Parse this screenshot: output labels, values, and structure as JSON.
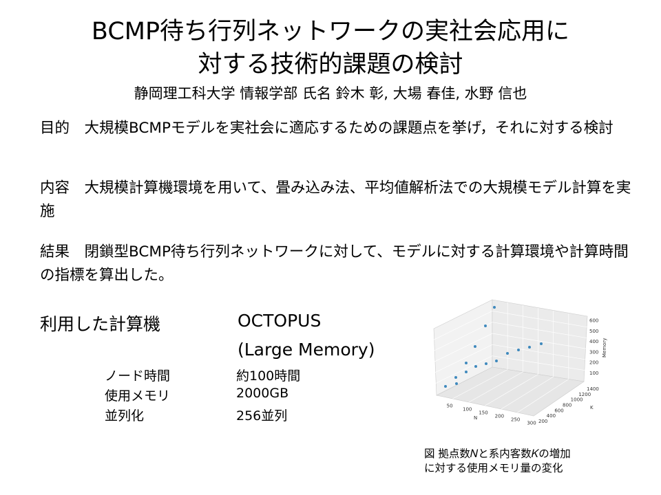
{
  "title": {
    "line1": "BCMP待ち行列ネットワークの実社会応用に",
    "line2": "対する技術的課題の検討"
  },
  "authors": "静岡理工科大学 情報学部 氏名 鈴木 彰, 大場 春佳, 水野 信也",
  "sections": [
    {
      "label": "目的",
      "text": "大規模BCMPモデルを実社会に適応するための課題点を挙げ，それに対する検討"
    },
    {
      "label": "内容",
      "text": "大規模計算機環境を用いて、畳み込み法、平均値解析法での大規模モデル計算を実施"
    },
    {
      "label": "結果",
      "text": "閉鎖型BCMP待ち行列ネットワークに対して、モデルに対する計算環境や計算時間の指標を算出した。"
    }
  ],
  "computer": {
    "label": "利用した計算機",
    "name_line1": "OCTOPUS",
    "name_line2": "(Large Memory)",
    "specs": [
      {
        "key": "ノード時間",
        "value": "約100時間"
      },
      {
        "key": "使用メモリ",
        "value": "2000GB"
      },
      {
        "key": "並列化",
        "value": "256並列"
      }
    ]
  },
  "figure": {
    "caption_line1": "図 拠点数𝑁と系内客数𝐾の増加",
    "caption_line2": "に対する使用メモリ量の変化",
    "chart_data": {
      "type": "scatter3d",
      "xlabel": "N",
      "ylabel": "K",
      "zlabel": "Memory",
      "x_ticks": [
        "50",
        "100",
        "150",
        "200",
        "250",
        "300"
      ],
      "y_ticks": [
        "200",
        "400",
        "600",
        "800",
        "1000",
        "1200",
        "1400"
      ],
      "z_ticks": [
        "100",
        "200",
        "300",
        "400",
        "500",
        "600"
      ],
      "grid": true,
      "marker_color": "#1f77b4"
    }
  }
}
